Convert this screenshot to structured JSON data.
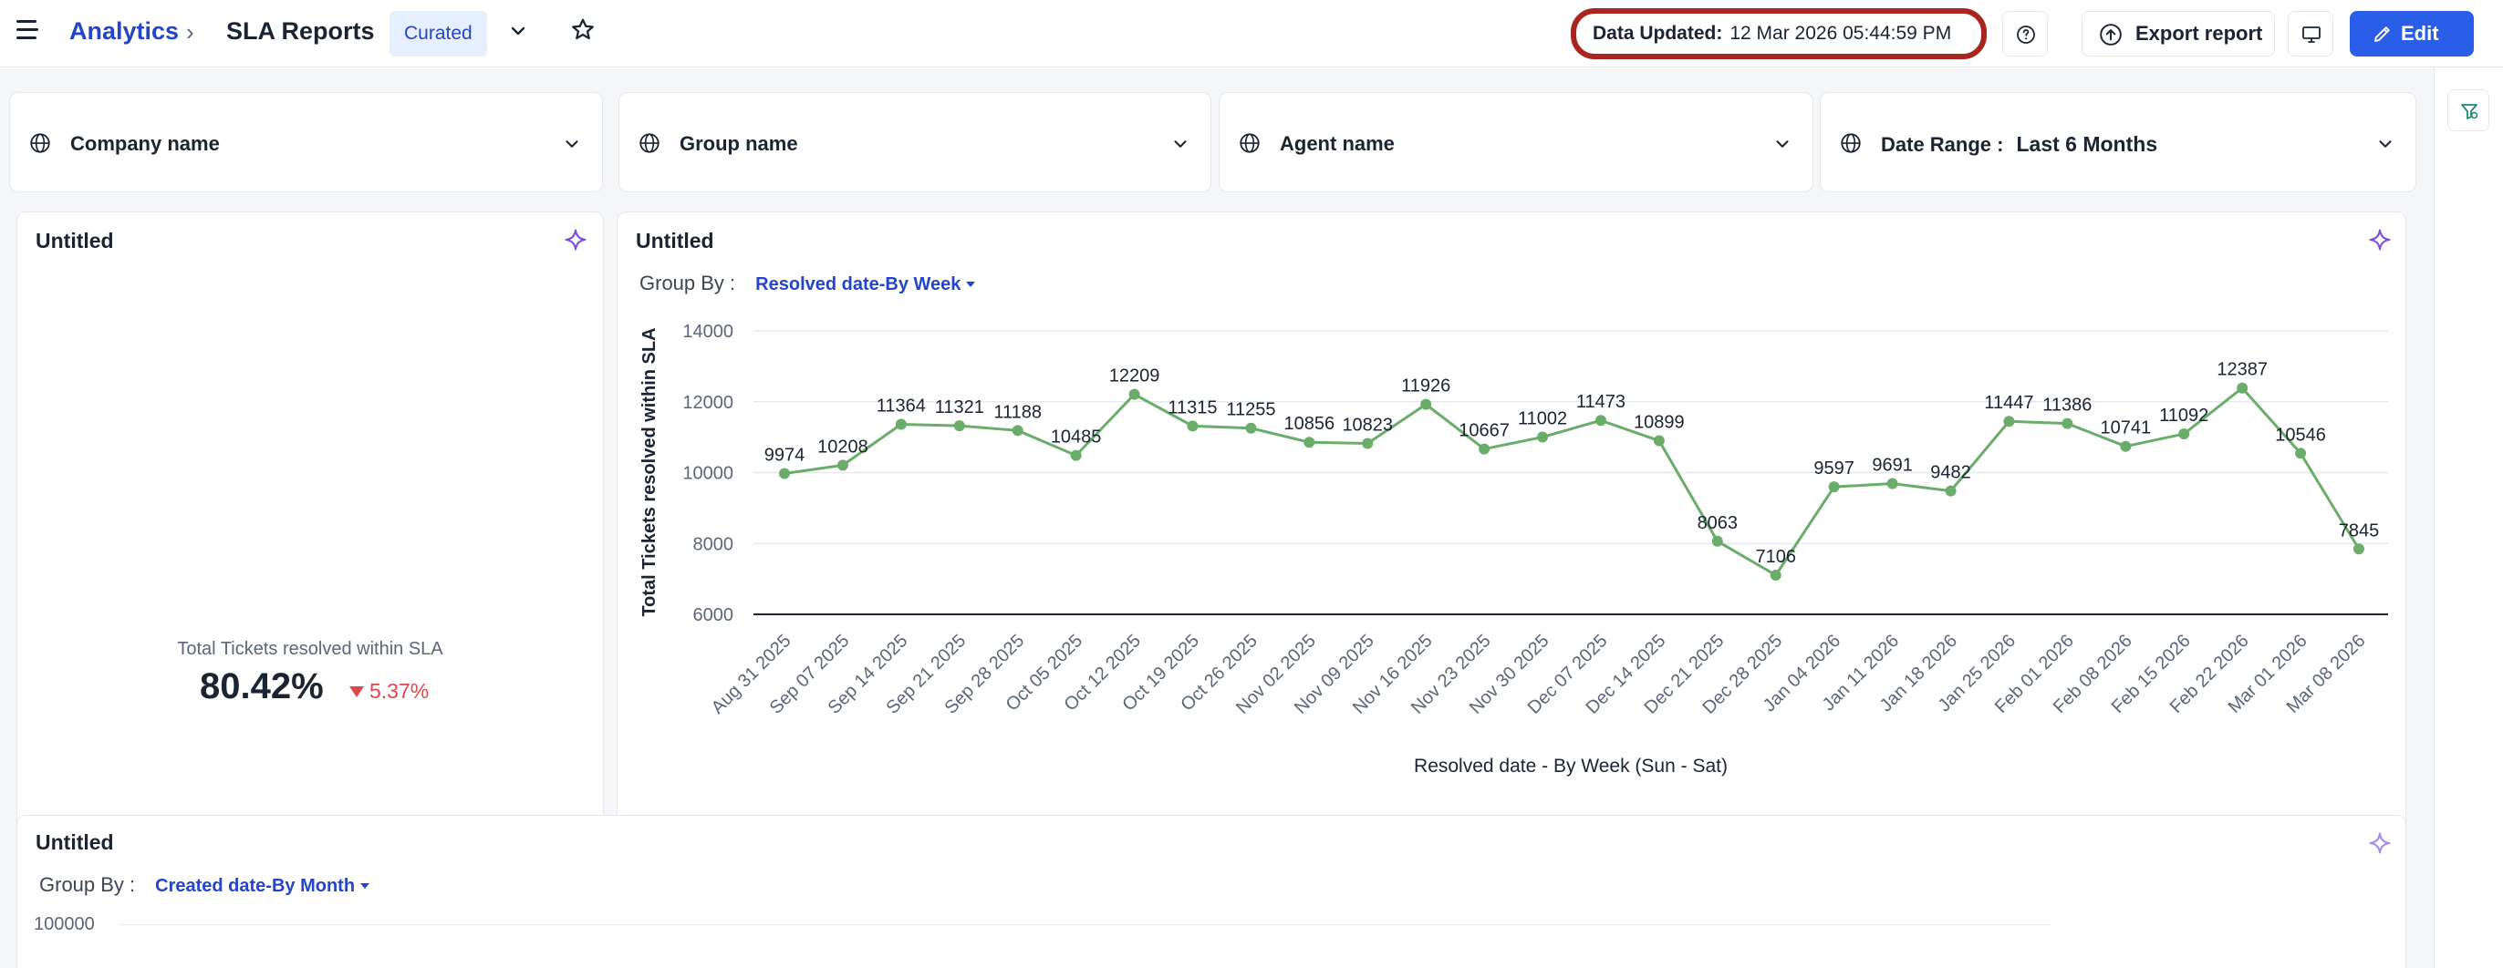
{
  "header": {
    "breadcrumb_root": "Analytics",
    "breadcrumb_sep": "›",
    "breadcrumb_current": "SLA Reports",
    "badge": "Curated",
    "data_updated_label": "Data Updated:",
    "data_updated_value": "12 Mar 2026 05:44:59 PM",
    "export_label": "Export report",
    "edit_label": "Edit"
  },
  "filters": [
    {
      "label": "Company name",
      "value": ""
    },
    {
      "label": "Group name",
      "value": ""
    },
    {
      "label": "Agent name",
      "value": ""
    },
    {
      "label": "Date Range :",
      "value": "Last 6 Months"
    }
  ],
  "kpi_card": {
    "title": "Untitled",
    "label": "Total Tickets resolved within SLA",
    "value": "80.42%",
    "delta": "5.37%",
    "delta_direction": "down"
  },
  "line_card": {
    "title": "Untitled",
    "group_by_label": "Group By :",
    "group_by_value": "Resolved date-By Week"
  },
  "bottom_card": {
    "title": "Untitled",
    "group_by_label": "Group By :",
    "group_by_value": "Created date-By Month",
    "first_tick": "100000"
  },
  "colors": {
    "accent": "#2a5ee8",
    "link": "#2545c8",
    "line": "#6aad6a",
    "negative": "#e0474c",
    "highlight_border": "#a8261f",
    "sparkle": "#7c4dde"
  },
  "chart_data": {
    "type": "line",
    "title": "",
    "xlabel": "Resolved date - By Week (Sun - Sat)",
    "ylabel": "Total Tickets resolved within SLA",
    "ylim": [
      6000,
      14000
    ],
    "yticks": [
      6000,
      8000,
      10000,
      12000,
      14000
    ],
    "grid": true,
    "categories": [
      "Aug 31 2025",
      "Sep 07 2025",
      "Sep 14 2025",
      "Sep 21 2025",
      "Sep 28 2025",
      "Oct 05 2025",
      "Oct 12 2025",
      "Oct 19 2025",
      "Oct 26 2025",
      "Nov 02 2025",
      "Nov 09 2025",
      "Nov 16 2025",
      "Nov 23 2025",
      "Nov 30 2025",
      "Dec 07 2025",
      "Dec 14 2025",
      "Dec 21 2025",
      "Dec 28 2025",
      "Jan 04 2026",
      "Jan 11 2026",
      "Jan 18 2026",
      "Jan 25 2026",
      "Feb 01 2026",
      "Feb 08 2026",
      "Feb 15 2026",
      "Feb 22 2026",
      "Mar 01 2026",
      "Mar 08 2026"
    ],
    "series": [
      {
        "values": [
          9974,
          10208,
          11364,
          11321,
          11188,
          10485,
          12209,
          11315,
          11255,
          10856,
          10823,
          11926,
          10667,
          11002,
          11473,
          10899,
          8063,
          7106,
          9597,
          9691,
          9482,
          11447,
          11386,
          10741,
          11092,
          12387,
          10546,
          7845
        ]
      }
    ]
  }
}
